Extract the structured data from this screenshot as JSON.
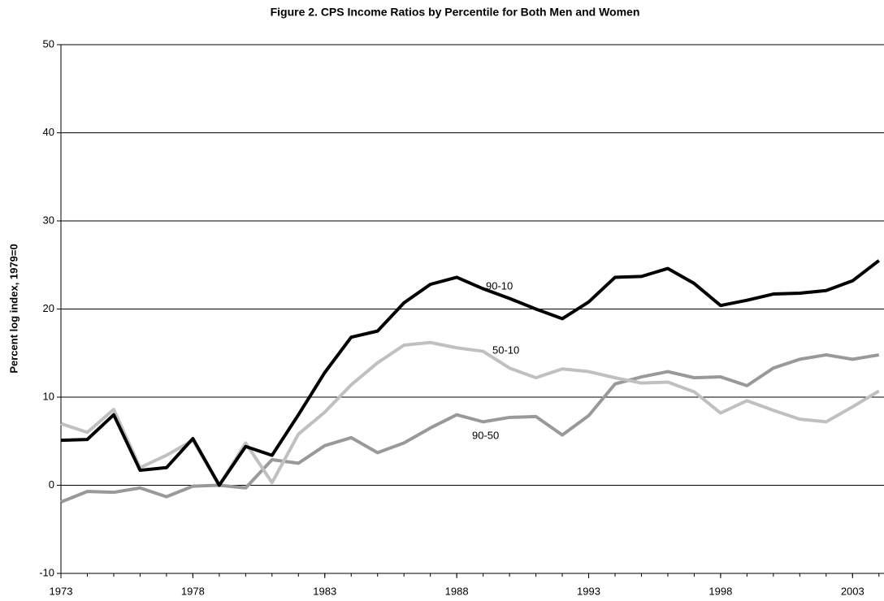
{
  "chart_data": {
    "type": "line",
    "title": "Figure 2.  CPS Income Ratios by Percentile for Both Men and Women",
    "y_label": "Percent log index, 1979=0",
    "x": [
      1973,
      1974,
      1975,
      1976,
      1977,
      1978,
      1979,
      1980,
      1981,
      1982,
      1983,
      1984,
      1985,
      1986,
      1987,
      1988,
      1989,
      1990,
      1991,
      1992,
      1993,
      1994,
      1995,
      1996,
      1997,
      1998,
      1999,
      2000,
      2001,
      2002,
      2003,
      2004
    ],
    "series": [
      {
        "name": "90-10",
        "color": "#000000",
        "values": [
          5.1,
          5.2,
          8.0,
          1.7,
          2.0,
          5.3,
          0,
          4.4,
          3.4,
          8.0,
          12.8,
          16.8,
          17.5,
          20.7,
          22.8,
          23.6,
          22.3,
          21.2,
          20.0,
          18.9,
          20.8,
          23.6,
          23.7,
          24.6,
          22.9,
          20.4,
          21.0,
          21.7,
          21.8,
          22.1,
          23.2,
          25.5
        ]
      },
      {
        "name": "50-10",
        "color": "#c0c0c0",
        "values": [
          7.0,
          6.0,
          8.6,
          2.0,
          3.4,
          5.1,
          0,
          4.8,
          0.3,
          5.8,
          8.3,
          11.4,
          13.9,
          15.9,
          16.2,
          15.6,
          15.2,
          13.3,
          12.2,
          13.2,
          12.9,
          12.2,
          11.6,
          11.7,
          10.6,
          8.2,
          9.6,
          8.5,
          7.5,
          7.2,
          8.9,
          10.7
        ]
      },
      {
        "name": "90-50",
        "color": "#999999",
        "values": [
          -1.9,
          -0.7,
          -0.8,
          -0.3,
          -1.3,
          -0.1,
          0,
          -0.3,
          2.9,
          2.5,
          4.5,
          5.4,
          3.7,
          4.8,
          6.5,
          8.0,
          7.2,
          7.7,
          7.8,
          5.7,
          7.9,
          11.5,
          12.3,
          12.9,
          12.2,
          12.3,
          11.3,
          13.3,
          14.3,
          14.8,
          14.3,
          14.8
        ]
      }
    ],
    "xlim": [
      1973,
      2004.1
    ],
    "xticks": [
      1973,
      1978,
      1983,
      1988,
      1993,
      1998,
      2003
    ],
    "ylim": [
      -10,
      50
    ],
    "yticks": [
      -10,
      0,
      10,
      20,
      30,
      40,
      50
    ],
    "grid": true
  }
}
